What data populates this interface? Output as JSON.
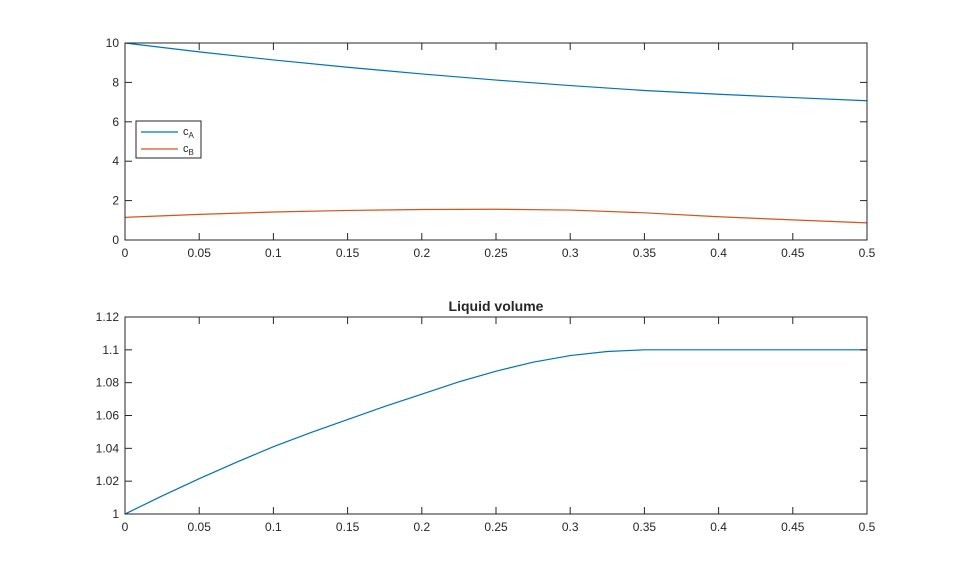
{
  "chart_data": [
    {
      "type": "line",
      "title": "",
      "xlabel": "",
      "ylabel": "",
      "xlim": [
        0,
        0.5
      ],
      "ylim": [
        0,
        10
      ],
      "xticks": [
        0,
        0.05,
        0.1,
        0.15,
        0.2,
        0.25,
        0.3,
        0.35,
        0.4,
        0.45,
        0.5
      ],
      "xtick_labels": [
        "0",
        "0.05",
        "0.1",
        "0.15",
        "0.2",
        "0.25",
        "0.3",
        "0.35",
        "0.4",
        "0.45",
        "0.5"
      ],
      "yticks": [
        0,
        2,
        4,
        6,
        8,
        10
      ],
      "ytick_labels": [
        "0",
        "2",
        "4",
        "6",
        "8",
        "10"
      ],
      "grid": false,
      "legend": {
        "placement": "left",
        "entries": [
          {
            "base": "c",
            "sub": "A"
          },
          {
            "base": "c",
            "sub": "B"
          }
        ]
      },
      "series": [
        {
          "name": "cA",
          "color": "#0072BD",
          "x": [
            0,
            0.05,
            0.1,
            0.15,
            0.2,
            0.25,
            0.3,
            0.35,
            0.4,
            0.45,
            0.5
          ],
          "y": [
            10.0,
            9.55,
            9.14,
            8.77,
            8.43,
            8.12,
            7.84,
            7.59,
            7.4,
            7.23,
            7.07
          ]
        },
        {
          "name": "cB",
          "color": "#D95319",
          "x": [
            0,
            0.05,
            0.1,
            0.15,
            0.2,
            0.25,
            0.3,
            0.35,
            0.4,
            0.45,
            0.5
          ],
          "y": [
            1.15,
            1.3,
            1.42,
            1.5,
            1.55,
            1.56,
            1.52,
            1.38,
            1.18,
            1.02,
            0.87
          ]
        }
      ]
    },
    {
      "type": "line",
      "title": "Liquid volume",
      "xlabel": "",
      "ylabel": "",
      "xlim": [
        0,
        0.5
      ],
      "ylim": [
        1,
        1.12
      ],
      "xticks": [
        0,
        0.05,
        0.1,
        0.15,
        0.2,
        0.25,
        0.3,
        0.35,
        0.4,
        0.45,
        0.5
      ],
      "xtick_labels": [
        "0",
        "0.05",
        "0.1",
        "0.15",
        "0.2",
        "0.25",
        "0.3",
        "0.35",
        "0.4",
        "0.45",
        "0.5"
      ],
      "yticks": [
        1,
        1.02,
        1.04,
        1.06,
        1.08,
        1.1,
        1.12
      ],
      "ytick_labels": [
        "1",
        "1.02",
        "1.04",
        "1.06",
        "1.08",
        "1.1",
        "1.12"
      ],
      "grid": false,
      "series": [
        {
          "color": "#0072BD",
          "x": [
            0,
            0.025,
            0.05,
            0.075,
            0.1,
            0.125,
            0.15,
            0.175,
            0.2,
            0.225,
            0.25,
            0.275,
            0.3,
            0.325,
            0.35,
            0.4,
            0.45,
            0.5
          ],
          "y": [
            1.0,
            1.011,
            1.0215,
            1.0315,
            1.041,
            1.0495,
            1.0575,
            1.0655,
            1.073,
            1.0805,
            1.087,
            1.0925,
            1.0965,
            1.099,
            1.1,
            1.1,
            1.1,
            1.1
          ]
        }
      ]
    }
  ]
}
